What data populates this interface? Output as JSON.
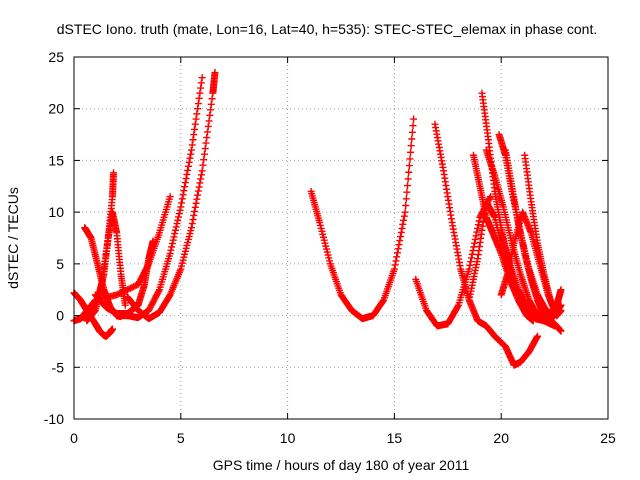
{
  "chart_data": {
    "type": "scatter",
    "title": "dSTEC Iono. truth (mate, Lon=16, Lat=40, h=535): STEC-STEC_elemax in phase cont.",
    "xlabel": "GPS time / hours of day 180 of year 2011",
    "ylabel": "dSTEC  / TECUs",
    "xlim": [
      0,
      25
    ],
    "ylim": [
      -10,
      25
    ],
    "xticks": [
      "0",
      "5",
      "10",
      "15",
      "20",
      "25"
    ],
    "yticks": [
      "-10",
      "-5",
      "0",
      "5",
      "10",
      "15",
      "20",
      "25"
    ],
    "grid": true,
    "marker": "+",
    "color": "#ff0000",
    "series": [
      {
        "x": [
          0.0,
          0.3,
          0.6,
          1.0,
          1.2,
          1.4,
          1.5,
          1.6,
          1.7,
          1.8
        ],
        "y": [
          2.2,
          1.5,
          0.5,
          -0.8,
          -1.5,
          -1.9,
          -2.0,
          -1.8,
          -1.6,
          -1.3
        ]
      },
      {
        "x": [
          0.0,
          0.3,
          0.7,
          1.1,
          1.4,
          1.6,
          1.8,
          1.85
        ],
        "y": [
          -0.5,
          -0.3,
          0.3,
          1.5,
          4.0,
          7.5,
          11.5,
          13.8
        ]
      },
      {
        "x": [
          0.5,
          0.8,
          1.1,
          1.4,
          1.7,
          2.0,
          2.2
        ],
        "y": [
          8.5,
          7.5,
          5.0,
          2.5,
          0.8,
          0.0,
          -0.1
        ]
      },
      {
        "x": [
          0.6,
          1.0,
          1.3,
          1.6,
          1.8,
          2.0,
          2.2,
          2.4
        ],
        "y": [
          -0.5,
          0.5,
          3.0,
          7.5,
          10.0,
          8.0,
          4.0,
          1.0
        ]
      },
      {
        "x": [
          1.0,
          1.5,
          2.0,
          2.5,
          3.0,
          3.3,
          3.5,
          3.7
        ],
        "y": [
          2.0,
          0.8,
          0.2,
          0.2,
          1.0,
          3.0,
          5.5,
          7.2
        ]
      },
      {
        "x": [
          0.3,
          1.0,
          2.0,
          3.0,
          3.5,
          4.0,
          4.5
        ],
        "y": [
          -0.3,
          1.5,
          2.0,
          3.0,
          5.0,
          8.0,
          11.5
        ]
      },
      {
        "x": [
          2.0,
          2.5,
          3.0,
          3.5,
          4.0,
          4.5,
          5.0,
          5.5,
          6.0
        ],
        "y": [
          0.0,
          0.0,
          -0.2,
          0.5,
          2.5,
          6.0,
          10.5,
          16.0,
          23.0
        ]
      },
      {
        "x": [
          2.5,
          3.0,
          3.5,
          4.0,
          4.5,
          5.0,
          5.5,
          6.0,
          6.5,
          6.6
        ],
        "y": [
          1.8,
          0.5,
          -0.3,
          0.3,
          2.0,
          4.5,
          8.5,
          14.0,
          21.5,
          23.5
        ]
      },
      {
        "x": [
          11.1,
          11.5,
          12.0,
          12.5,
          13.0,
          13.5,
          14.0,
          14.5,
          15.0,
          15.5,
          15.9
        ],
        "y": [
          12.0,
          9.0,
          5.0,
          2.0,
          0.5,
          -0.3,
          0.0,
          1.5,
          4.5,
          10.0,
          19.0
        ]
      },
      {
        "x": [
          16.0,
          16.5,
          17.0,
          17.5,
          18.0,
          18.5,
          19.0,
          19.5
        ],
        "y": [
          3.5,
          0.5,
          -1.0,
          -0.8,
          1.0,
          4.5,
          9.5,
          11.5
        ]
      },
      {
        "x": [
          16.9,
          17.3,
          17.7,
          18.1,
          18.5,
          18.9,
          19.3,
          19.7,
          20.2,
          20.6,
          20.9,
          21.3,
          21.7
        ],
        "y": [
          18.5,
          14.0,
          9.0,
          4.5,
          1.5,
          -0.5,
          -1.0,
          -2.0,
          -3.0,
          -4.8,
          -4.5,
          -3.5,
          -2.0
        ]
      },
      {
        "x": [
          18.5,
          18.9,
          19.3,
          19.7,
          20.1,
          20.5,
          21.0,
          21.5,
          22.0
        ],
        "y": [
          1.5,
          5.5,
          11.0,
          9.5,
          6.0,
          3.0,
          1.0,
          0.0,
          0.5
        ]
      },
      {
        "x": [
          18.7,
          19.0,
          19.3,
          19.6,
          20.0,
          20.4,
          20.8,
          21.2,
          21.5
        ],
        "y": [
          15.5,
          12.5,
          9.5,
          8.0,
          6.0,
          3.5,
          1.5,
          0.0,
          -0.5
        ]
      },
      {
        "x": [
          19.1,
          19.4,
          19.7,
          20.0,
          20.3,
          20.6,
          21.0,
          21.5,
          22.0,
          22.5
        ],
        "y": [
          21.5,
          17.0,
          12.0,
          8.5,
          5.5,
          3.0,
          1.0,
          0.0,
          -0.5,
          -1.0
        ]
      },
      {
        "x": [
          19.3,
          19.7,
          20.1,
          20.5,
          20.9,
          21.3,
          21.7,
          22.1,
          22.5,
          22.8
        ],
        "y": [
          16.0,
          13.5,
          10.5,
          7.0,
          4.0,
          1.5,
          0.0,
          -0.5,
          -0.8,
          -1.5
        ]
      },
      {
        "x": [
          19.9,
          20.2,
          20.5,
          20.9,
          21.3,
          21.7,
          22.1,
          22.5,
          22.8
        ],
        "y": [
          17.5,
          15.5,
          12.0,
          8.0,
          4.5,
          2.0,
          0.5,
          0.0,
          1.0
        ]
      },
      {
        "x": [
          20.2,
          20.5,
          20.8,
          21.1,
          21.4,
          21.7,
          22.0,
          22.3,
          22.6,
          22.8
        ],
        "y": [
          16.0,
          12.5,
          9.0,
          6.0,
          3.5,
          1.5,
          0.0,
          -0.5,
          1.0,
          2.5
        ]
      },
      {
        "x": [
          20.0,
          20.3,
          20.6,
          21.0,
          21.4,
          21.8,
          22.2,
          22.6
        ],
        "y": [
          2.0,
          4.0,
          7.0,
          10.0,
          8.0,
          5.0,
          2.0,
          0.0
        ]
      },
      {
        "x": [
          21.1,
          21.4,
          21.7,
          22.0,
          22.3,
          22.6,
          22.8
        ],
        "y": [
          15.5,
          11.0,
          7.0,
          4.0,
          1.5,
          0.0,
          0.5
        ]
      },
      {
        "x": [
          20.0,
          20.4,
          20.8,
          21.2,
          21.6,
          22.0,
          22.4
        ],
        "y": [
          8.0,
          5.0,
          2.5,
          0.8,
          -0.3,
          -0.5,
          0.5
        ]
      }
    ]
  }
}
